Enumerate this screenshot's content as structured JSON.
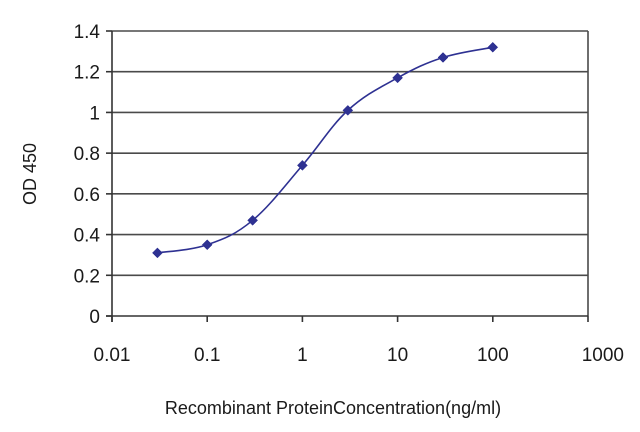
{
  "chart_data": {
    "type": "line",
    "title": "",
    "xlabel": "Recombinant ProteinConcentration(ng/ml)",
    "ylabel": "OD 450",
    "x_scale": "log",
    "xlim": [
      0.01,
      1000
    ],
    "ylim": [
      0,
      1.4
    ],
    "x_ticks": [
      0.01,
      0.1,
      1,
      10,
      100,
      1000
    ],
    "x_tick_labels": [
      "0.01",
      "0.1",
      "1",
      "10",
      "100",
      "1000"
    ],
    "y_ticks": [
      0,
      0.2,
      0.4,
      0.6,
      0.8,
      1,
      1.2,
      1.4
    ],
    "y_tick_labels": [
      "0",
      "0.2",
      "0.4",
      "0.6",
      "0.8",
      "1",
      "1.2",
      "1.4"
    ],
    "grid": "horizontal",
    "legend": "none",
    "series": [
      {
        "color": "#2e3192",
        "marker": "diamond",
        "x": [
          0.03,
          0.1,
          0.3,
          1,
          3,
          10,
          30,
          100
        ],
        "y": [
          0.31,
          0.35,
          0.47,
          0.74,
          1.01,
          1.17,
          1.27,
          1.32
        ]
      }
    ]
  }
}
